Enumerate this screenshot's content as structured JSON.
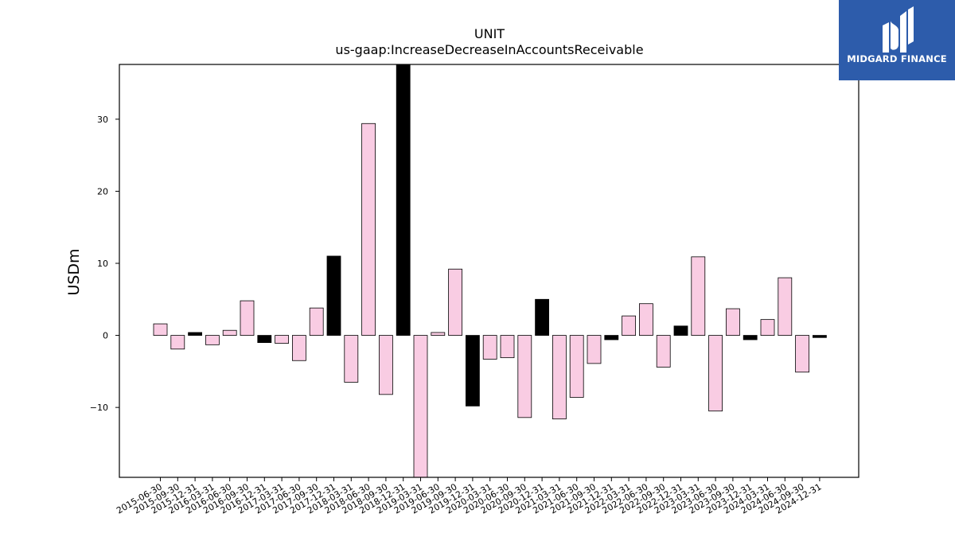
{
  "chart_data": {
    "type": "bar",
    "title": "UNIT",
    "subtitle": "us-gaap:IncreaseDecreaseInAccountsReceivable",
    "xlabel": "",
    "ylabel": "USDm",
    "ylim": [
      -19.7,
      37.6
    ],
    "yticks": [
      -10,
      0,
      10,
      20,
      30
    ],
    "grid": false,
    "colors": {
      "positive_default": "#f9cce3",
      "highlight": "#000000",
      "edge": "#000000"
    },
    "categories": [
      "2015-06-30",
      "2015-09-30",
      "2015-12-31",
      "2016-03-31",
      "2016-06-30",
      "2016-09-30",
      "2016-12-31",
      "2017-03-31",
      "2017-06-30",
      "2017-09-30",
      "2017-12-31",
      "2018-03-31",
      "2018-06-30",
      "2018-09-30",
      "2018-12-31",
      "2019-03-31",
      "2019-06-30",
      "2019-09-30",
      "2019-12-31",
      "2020-03-31",
      "2020-06-30",
      "2020-09-30",
      "2020-12-31",
      "2021-03-31",
      "2021-06-30",
      "2021-09-30",
      "2021-12-31",
      "2022-03-31",
      "2022-06-30",
      "2022-09-30",
      "2022-12-31",
      "2023-03-31",
      "2023-06-30",
      "2023-09-30",
      "2023-12-31",
      "2024-03-31",
      "2024-06-30",
      "2024-09-30",
      "2024-12-31"
    ],
    "values": [
      1.6,
      -1.9,
      0.4,
      -1.3,
      0.7,
      4.8,
      -1.0,
      -1.1,
      -3.5,
      3.8,
      11.0,
      -6.5,
      29.4,
      -8.2,
      37.6,
      -19.7,
      0.4,
      9.2,
      -9.8,
      -3.3,
      -3.1,
      -11.4,
      5.0,
      -11.6,
      -8.6,
      -3.9,
      -0.6,
      2.7,
      4.4,
      -4.4,
      1.3,
      10.9,
      -10.5,
      3.7,
      -0.6,
      2.2,
      8.0,
      -5.1,
      -0.3
    ],
    "highlight": [
      false,
      false,
      true,
      false,
      false,
      false,
      true,
      false,
      false,
      false,
      true,
      false,
      false,
      false,
      true,
      false,
      false,
      false,
      true,
      false,
      false,
      false,
      true,
      false,
      false,
      false,
      true,
      false,
      false,
      false,
      true,
      false,
      false,
      false,
      true,
      false,
      false,
      false,
      true
    ]
  },
  "logo": {
    "text": "MIDGARD FINANCE",
    "icon": "midgard-finance-logo-icon",
    "background": "#2d5cab"
  }
}
